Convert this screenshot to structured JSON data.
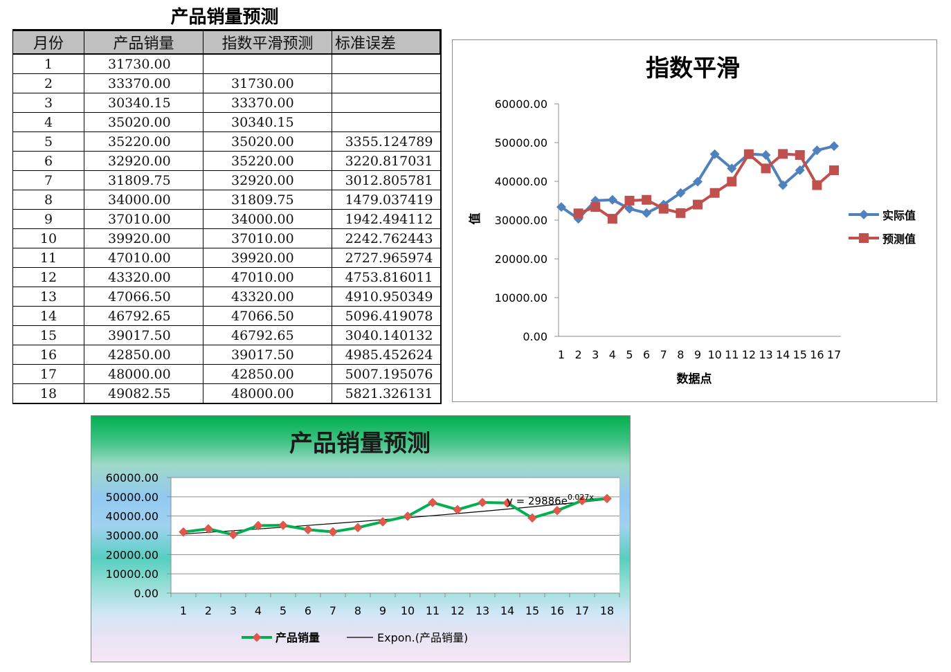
{
  "sheet": {
    "title": "产品销量预测",
    "headers": [
      "月份",
      "产品销量",
      "指数平滑预测",
      "标准误差"
    ],
    "rows": [
      [
        "1",
        "31730.00",
        "",
        ""
      ],
      [
        "2",
        "33370.00",
        "31730.00",
        ""
      ],
      [
        "3",
        "30340.15",
        "33370.00",
        ""
      ],
      [
        "4",
        "35020.00",
        "30340.15",
        ""
      ],
      [
        "5",
        "35220.00",
        "35020.00",
        "3355.124789"
      ],
      [
        "6",
        "32920.00",
        "35220.00",
        "3220.817031"
      ],
      [
        "7",
        "31809.75",
        "32920.00",
        "3012.805781"
      ],
      [
        "8",
        "34000.00",
        "31809.75",
        "1479.037419"
      ],
      [
        "9",
        "37010.00",
        "34000.00",
        "1942.494112"
      ],
      [
        "10",
        "39920.00",
        "37010.00",
        "2242.762443"
      ],
      [
        "11",
        "47010.00",
        "39920.00",
        "2727.965974"
      ],
      [
        "12",
        "43320.00",
        "47010.00",
        "4753.816011"
      ],
      [
        "13",
        "47066.50",
        "43320.00",
        "4910.950349"
      ],
      [
        "14",
        "46792.65",
        "47066.50",
        "5096.419078"
      ],
      [
        "15",
        "39017.50",
        "46792.65",
        "3040.140132"
      ],
      [
        "16",
        "42850.00",
        "39017.50",
        "4985.452624"
      ],
      [
        "17",
        "48000.00",
        "42850.00",
        "5007.195076"
      ],
      [
        "18",
        "49082.55",
        "48000.00",
        "5821.326131"
      ]
    ]
  },
  "chart_data": [
    {
      "type": "line",
      "title": "指数平滑",
      "xlabel": "数据点",
      "ylabel": "值",
      "categories": [
        "1",
        "2",
        "3",
        "4",
        "5",
        "6",
        "7",
        "8",
        "9",
        "10",
        "11",
        "12",
        "13",
        "14",
        "15",
        "16",
        "17"
      ],
      "ylim": [
        0,
        60000
      ],
      "yticks": [
        0,
        10000,
        20000,
        30000,
        40000,
        50000,
        60000
      ],
      "ytick_labels": [
        "0.00",
        "10000.00",
        "20000.00",
        "30000.00",
        "40000.00",
        "50000.00",
        "60000.00"
      ],
      "grid": false,
      "legend": "right",
      "series": [
        {
          "name": "实际值",
          "color": "#4f81bd",
          "marker": "diamond",
          "values": [
            33370,
            30340.15,
            35020,
            35220,
            32920,
            31809.75,
            34000,
            37010,
            39920,
            47010,
            43320,
            47066.5,
            46792.65,
            39017.5,
            42850,
            48000,
            49082.55
          ]
        },
        {
          "name": "预测值",
          "color": "#c0504d",
          "marker": "square",
          "values": [
            null,
            31730,
            33370,
            30340.15,
            35020,
            35220,
            32920,
            31809.75,
            34000,
            37010,
            39920,
            47010,
            43320,
            47066.5,
            46792.65,
            39017.5,
            42850
          ]
        }
      ]
    },
    {
      "type": "line",
      "title": "产品销量预测",
      "xlabel": "",
      "ylabel": "",
      "categories": [
        "1",
        "2",
        "3",
        "4",
        "5",
        "6",
        "7",
        "8",
        "9",
        "10",
        "11",
        "12",
        "13",
        "14",
        "15",
        "16",
        "17",
        "18"
      ],
      "ylim": [
        0,
        60000
      ],
      "yticks": [
        0,
        10000,
        20000,
        30000,
        40000,
        50000,
        60000
      ],
      "ytick_labels": [
        "0.00",
        "10000.00",
        "20000.00",
        "30000.00",
        "40000.00",
        "50000.00",
        "60000.00"
      ],
      "grid": true,
      "legend": "bottom",
      "series": [
        {
          "name": "产品销量",
          "color": "#00b050",
          "marker_color": "#e0584b",
          "marker": "diamond",
          "values": [
            31730,
            33370,
            30340.15,
            35020,
            35220,
            32920,
            31809.75,
            34000,
            37010,
            39920,
            47010,
            43320,
            47066.5,
            46792.65,
            39017.5,
            42850,
            48000,
            49082.55
          ]
        }
      ],
      "trendline": {
        "name": "Expon.(产品销量)",
        "color": "#000000",
        "a": 29886,
        "b": 0.027,
        "equation": "y = 29886e",
        "exponent": "0.027x"
      }
    }
  ]
}
